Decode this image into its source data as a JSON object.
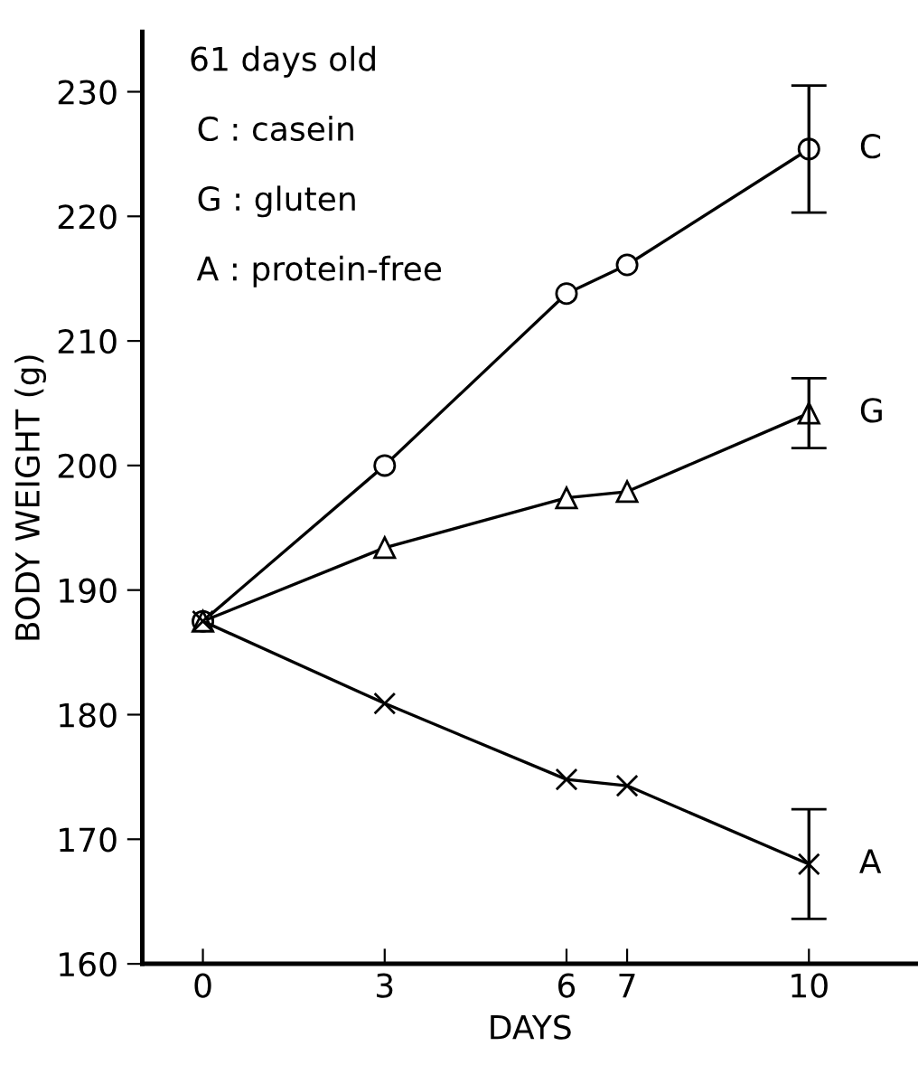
{
  "chart_data": {
    "type": "line",
    "xlabel": "DAYS",
    "ylabel": "BODY WEIGHT (g)",
    "x": [
      0,
      3,
      6,
      7,
      10
    ],
    "series": [
      {
        "name": "C",
        "color": "#000000",
        "marker": "circle",
        "values": [
          187.5,
          200,
          213.8,
          216.1,
          225.4
        ],
        "errors": [
          null,
          null,
          null,
          null,
          5.1
        ]
      },
      {
        "name": "G",
        "color": "#000000",
        "marker": "triangle",
        "values": [
          187.5,
          193.4,
          197.4,
          197.9,
          204.2
        ],
        "errors": [
          null,
          null,
          null,
          null,
          2.8
        ]
      },
      {
        "name": "A",
        "color": "#000000",
        "marker": "cross",
        "values": [
          187.5,
          180.9,
          174.8,
          174.3,
          168
        ],
        "errors": [
          null,
          null,
          null,
          null,
          4.4
        ]
      }
    ],
    "xlim": [
      -1,
      11.8
    ],
    "ylim": [
      160,
      234.8
    ],
    "xticks": [
      0,
      3,
      6,
      7,
      10
    ],
    "yticks": [
      160,
      170,
      180,
      190,
      200,
      210,
      220,
      230
    ],
    "grid": false,
    "legend": false,
    "line_style": "solid",
    "annotations": [
      "61 days old",
      "C : casein",
      "G : gluten",
      "A : protein-free"
    ]
  }
}
